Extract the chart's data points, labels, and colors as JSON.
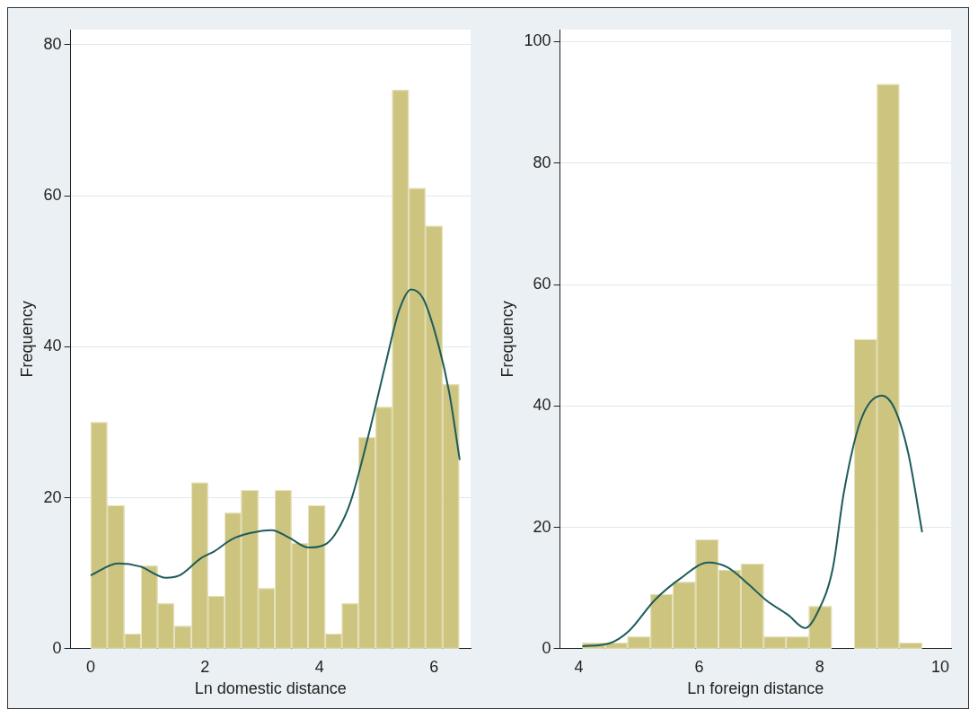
{
  "chart_data": [
    {
      "type": "histogram",
      "xlabel": "Ln domestic distance",
      "ylabel": "Frequency",
      "xlim": [
        -0.35,
        6.64
      ],
      "xticks": [
        0,
        2,
        4,
        6
      ],
      "ylim": [
        0,
        82
      ],
      "yticks": [
        0,
        20,
        40,
        60,
        80
      ],
      "grid": "y",
      "series": [
        {
          "color": "#cdc47f",
          "bins": [
            0,
            0.29,
            0.59,
            0.88,
            1.17,
            1.46,
            1.76,
            2.05,
            2.34,
            2.63,
            2.93,
            3.22,
            3.51,
            3.8,
            4.1,
            4.39,
            4.68,
            4.98,
            5.27,
            5.56,
            5.85,
            6.15,
            6.44
          ],
          "values": [
            30,
            19,
            2,
            11,
            6,
            3,
            22,
            7,
            18,
            21,
            8,
            21,
            14,
            19,
            2,
            6,
            28,
            32,
            74,
            61,
            56,
            35
          ]
        },
        {
          "type": "line",
          "color": "#1e5c5b",
          "x": [
            0,
            0.48,
            0.86,
            1.32,
            1.55,
            1.93,
            2.16,
            2.47,
            2.78,
            3.16,
            3.47,
            3.81,
            4.12,
            4.31,
            4.54,
            4.85,
            5.16,
            5.39,
            5.6,
            5.81,
            6.08,
            6.27,
            6.45
          ],
          "values": [
            9.7,
            11.3,
            10.9,
            9.4,
            9.7,
            12,
            12.9,
            14.5,
            15.3,
            15.7,
            14.7,
            13.4,
            13.9,
            15.6,
            19.4,
            28.1,
            37.9,
            44.8,
            47.6,
            46.4,
            40.2,
            33.8,
            25
          ]
        }
      ]
    },
    {
      "type": "histogram",
      "xlabel": "Ln foreign distance",
      "ylabel": "Frequency",
      "xlim": [
        3.69,
        10.18
      ],
      "xticks": [
        4,
        6,
        8,
        10
      ],
      "ylim": [
        0,
        102
      ],
      "yticks": [
        0,
        20,
        40,
        60,
        80,
        100
      ],
      "grid": "y",
      "series": [
        {
          "color": "#cdc47f",
          "bins": [
            4.06,
            4.44,
            4.81,
            5.19,
            5.56,
            5.94,
            6.32,
            6.69,
            7.07,
            7.44,
            7.82,
            8.2,
            8.57,
            8.95,
            9.32,
            9.7
          ],
          "values": [
            1,
            1,
            2,
            9,
            11,
            18,
            13,
            14,
            2,
            2,
            7,
            0,
            51,
            93,
            1
          ]
        },
        {
          "type": "line",
          "color": "#1e5c5b",
          "x": [
            4.06,
            4.51,
            4.83,
            5.26,
            5.69,
            6.15,
            6.47,
            6.83,
            7.11,
            7.47,
            7.76,
            7.97,
            8.22,
            8.4,
            8.68,
            9.03,
            9.25,
            9.47,
            9.7
          ],
          "values": [
            0.4,
            0.9,
            2.9,
            8,
            11.6,
            14.2,
            13.4,
            10.5,
            8,
            5.6,
            3.4,
            6.1,
            13.4,
            25.7,
            37.6,
            41.7,
            39.4,
            32.2,
            19.2
          ]
        }
      ]
    }
  ]
}
